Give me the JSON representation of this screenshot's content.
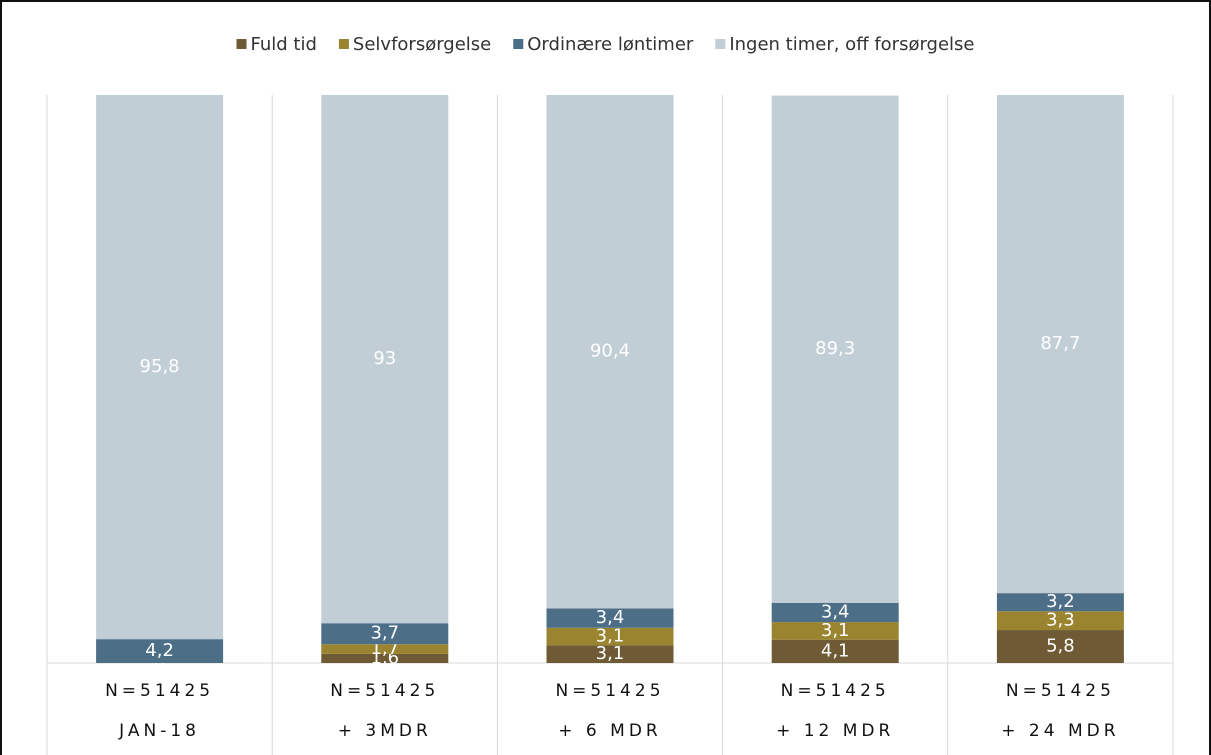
{
  "chart_data": {
    "type": "stacked_bar",
    "categories": [
      "JAN-18",
      "+ 3MDR",
      "+ 6 MDR",
      "+ 12 MDR",
      "+ 24 MDR"
    ],
    "sample_sizes": [
      "N=51425",
      "N=51425",
      "N=51425",
      "N=51425",
      "N=51425"
    ],
    "ylim": [
      0,
      100
    ],
    "legend": "top",
    "series": [
      {
        "name": "Fuld tid",
        "color": "#6e5a35",
        "values": [
          0,
          1.6,
          3.1,
          4.1,
          5.8
        ],
        "value_labels": [
          "0",
          "1,6",
          "3,1",
          "4,1",
          "5,8"
        ]
      },
      {
        "name": "Selvforsørgelse",
        "color": "#9b8430",
        "values": [
          0,
          1.7,
          3.1,
          3.1,
          3.3
        ],
        "value_labels": [
          "0",
          "1,7",
          "3,1",
          "3,1",
          "3,3"
        ]
      },
      {
        "name": "Ordinære løntimer",
        "color": "#4d6e87",
        "values": [
          4.2,
          3.7,
          3.4,
          3.4,
          3.2
        ],
        "value_labels": [
          "4,2",
          "3,7",
          "3,4",
          "3,4",
          "3,2"
        ]
      },
      {
        "name": "Ingen timer, off forsørgelse",
        "color": "#c2ced6",
        "values": [
          95.8,
          93,
          90.4,
          89.3,
          87.7
        ],
        "value_labels": [
          "95,8",
          "93",
          "90,4",
          "89,3",
          "87,7"
        ]
      }
    ]
  }
}
